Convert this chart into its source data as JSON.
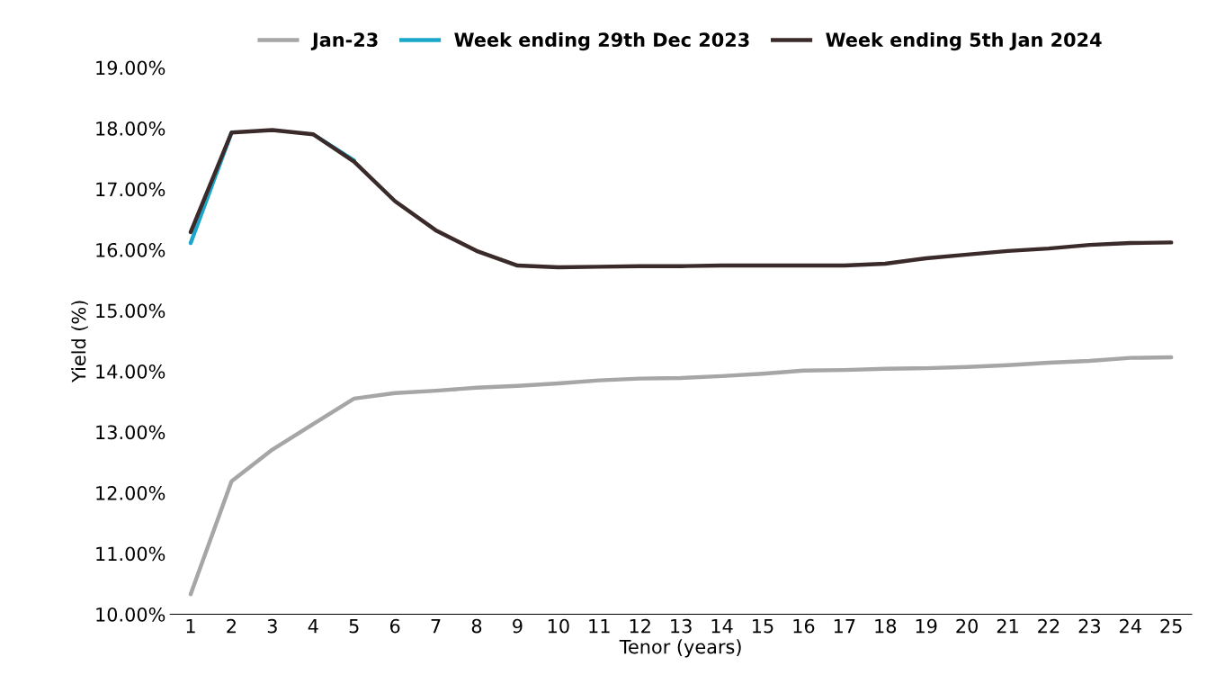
{
  "chart_data": {
    "type": "line",
    "xlabel": "Tenor (years)",
    "ylabel": "Yield (%)",
    "categories": [
      "1",
      "2",
      "3",
      "4",
      "5",
      "6",
      "7",
      "8",
      "9",
      "10",
      "11",
      "12",
      "13",
      "14",
      "15",
      "16",
      "17",
      "18",
      "19",
      "20",
      "21",
      "22",
      "23",
      "24",
      "25"
    ],
    "series": [
      {
        "name": "Jan-23",
        "color": "#a6a6a6",
        "values": [
          10.33,
          12.19,
          12.71,
          13.13,
          13.55,
          13.64,
          13.68,
          13.73,
          13.76,
          13.8,
          13.85,
          13.88,
          13.89,
          13.92,
          13.96,
          14.01,
          14.02,
          14.04,
          14.05,
          14.07,
          14.1,
          14.14,
          14.17,
          14.22,
          14.23
        ]
      },
      {
        "name": "Week ending 29th Dec 2023",
        "color": "#1ba7c9",
        "values": [
          16.11,
          17.93,
          null,
          17.9,
          17.47,
          null,
          null,
          null,
          null,
          null,
          null,
          null,
          null,
          null,
          null,
          null,
          null,
          null,
          null,
          null,
          null,
          null,
          null,
          null,
          null
        ]
      },
      {
        "name": "Week ending 5th Jan 2024",
        "color": "#3b2a2a",
        "values": [
          16.29,
          17.93,
          17.97,
          17.9,
          17.45,
          16.8,
          16.32,
          15.98,
          15.74,
          15.71,
          15.72,
          15.73,
          15.73,
          15.74,
          15.74,
          15.74,
          15.74,
          15.77,
          15.86,
          15.92,
          15.98,
          16.02,
          16.08,
          16.11,
          16.12
        ]
      }
    ],
    "ylim": [
      10,
      19
    ],
    "yticks": [
      {
        "value": 10,
        "label": "10.00%"
      },
      {
        "value": 11,
        "label": "11.00%"
      },
      {
        "value": 12,
        "label": "12.00%"
      },
      {
        "value": 13,
        "label": "13.00%"
      },
      {
        "value": 14,
        "label": "14.00%"
      },
      {
        "value": 15,
        "label": "15.00%"
      },
      {
        "value": 16,
        "label": "16.00%"
      },
      {
        "value": 17,
        "label": "17.00%"
      },
      {
        "value": 18,
        "label": "18.00%"
      },
      {
        "value": 19,
        "label": "19.00%"
      }
    ],
    "grid": false,
    "legend": "top",
    "marker": "none",
    "line_style": "solid"
  }
}
